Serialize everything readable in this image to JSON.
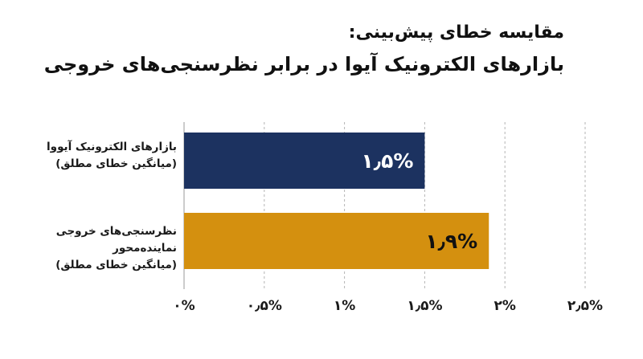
{
  "chart_data": {
    "type": "bar",
    "orientation": "horizontal",
    "title_line1": "مقایسه خطای پیش‌بینی:",
    "title_line2": "بازارهای الکترونیک آیوا در برابر نظرسنجی‌های خروجی",
    "categories": [
      {
        "line1": "بازارهای الکترونیک آیووا",
        "line2": "(میانگین خطای مطلق)"
      },
      {
        "line1": "نظرسنجی‌های خروجی نماینده‌محور",
        "line2": "(میانگین خطای مطلق)"
      }
    ],
    "values": [
      1.5,
      1.9
    ],
    "value_labels": [
      "۱٫۵%",
      "۱٫۹%"
    ],
    "colors": [
      "#1c3260",
      "#d4900f"
    ],
    "xlim": [
      0,
      2.5
    ],
    "ticks": [
      0,
      0.5,
      1,
      1.5,
      2,
      2.5
    ],
    "tick_labels": [
      "۰%",
      "۰٫۵%",
      "۱%",
      "۱٫۵%",
      "۲%",
      "۲٫۵%"
    ],
    "grid": true
  }
}
